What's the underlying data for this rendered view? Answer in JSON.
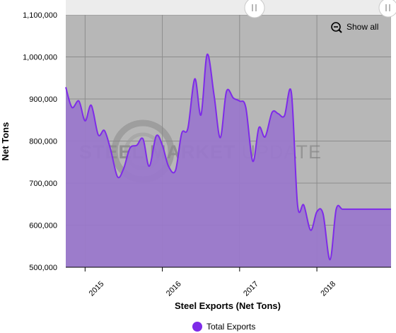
{
  "watermark": {
    "part1": "STEEL",
    "part2": "MARKET",
    "part3": "UPDATE"
  },
  "controls": {
    "show_all_label": "Show all",
    "zoom_icon": "zoom-out-icon",
    "scrollbar_handle_icon": "grip-icon"
  },
  "colors": {
    "plot_background": "#b7b7b7",
    "series_line": "#7e2be8",
    "series_fill": "#9a78cb",
    "legend_marker": "#7e2be8"
  },
  "chart_data": {
    "type": "area",
    "title": "",
    "xlabel": "Steel Exports (Net Tons)",
    "ylabel": "Net Tons",
    "ylim": [
      500000,
      1100000
    ],
    "yticks": [
      500000,
      600000,
      700000,
      800000,
      900000,
      1000000,
      1100000
    ],
    "ytick_labels": [
      "500,000",
      "600,000",
      "700,000",
      "800,000",
      "900,000",
      "1,000,000",
      "1,100,000"
    ],
    "xlim": [
      2014.75,
      2018.96
    ],
    "xticks": [
      2015,
      2016,
      2017,
      2018
    ],
    "xtick_labels": [
      "2015",
      "2016",
      "2017",
      "2018"
    ],
    "grid": true,
    "legend_position": "bottom",
    "series": [
      {
        "name": "Total Exports",
        "x": [
          2014.75,
          2014.83,
          2014.92,
          2015.0,
          2015.08,
          2015.17,
          2015.25,
          2015.33,
          2015.42,
          2015.5,
          2015.58,
          2015.67,
          2015.75,
          2015.83,
          2015.92,
          2016.0,
          2016.08,
          2016.17,
          2016.25,
          2016.33,
          2016.42,
          2016.5,
          2016.58,
          2016.67,
          2016.75,
          2016.83,
          2016.92,
          2017.0,
          2017.08,
          2017.17,
          2017.25,
          2017.33,
          2017.42,
          2017.5,
          2017.58,
          2017.67,
          2017.75,
          2017.83,
          2017.92,
          2018.0,
          2018.08,
          2018.17,
          2018.25,
          2018.33,
          2018.42,
          2018.5,
          2018.58,
          2018.67,
          2018.75,
          2018.83,
          2018.92,
          2018.96
        ],
        "values": [
          928000,
          880000,
          895000,
          848000,
          885000,
          815000,
          825000,
          780000,
          715000,
          735000,
          783000,
          790000,
          805000,
          740000,
          812000,
          790000,
          740000,
          730000,
          818000,
          830000,
          948000,
          862000,
          1006000,
          908000,
          808000,
          918000,
          902000,
          895000,
          880000,
          752000,
          832000,
          810000,
          868000,
          865000,
          860000,
          915000,
          648000,
          648000,
          588000,
          632000,
          627000,
          518000,
          638000,
          638000,
          638000,
          638000,
          638000,
          638000,
          638000,
          638000,
          638000,
          638000
        ]
      }
    ]
  }
}
